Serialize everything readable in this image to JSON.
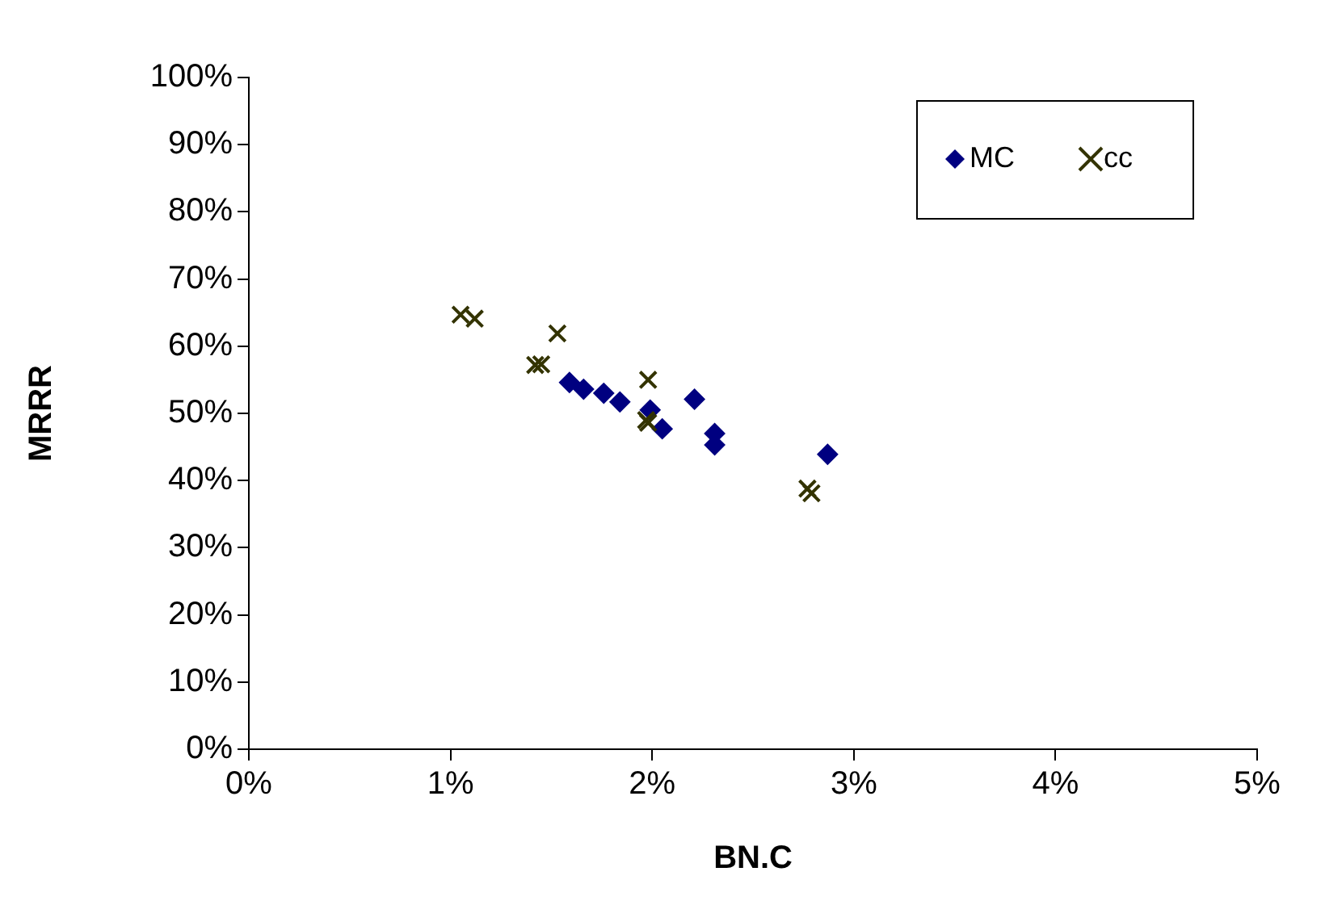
{
  "chart_data": {
    "type": "scatter",
    "xlabel": "BN.C",
    "ylabel": "MRRR",
    "xlim": [
      0,
      5
    ],
    "xticks": [
      {
        "value": 0,
        "label": "0%"
      },
      {
        "value": 1,
        "label": "1%"
      },
      {
        "value": 2,
        "label": "2%"
      },
      {
        "value": 3,
        "label": "3%"
      },
      {
        "value": 4,
        "label": "4%"
      },
      {
        "value": 5,
        "label": "5%"
      }
    ],
    "ylim": [
      0,
      100
    ],
    "yticks": [
      {
        "value": 0,
        "label": "0%"
      },
      {
        "value": 10,
        "label": "10%"
      },
      {
        "value": 20,
        "label": "20%"
      },
      {
        "value": 30,
        "label": "30%"
      },
      {
        "value": 40,
        "label": "40%"
      },
      {
        "value": 50,
        "label": "50%"
      },
      {
        "value": 60,
        "label": "60%"
      },
      {
        "value": 70,
        "label": "70%"
      },
      {
        "value": 80,
        "label": "80%"
      },
      {
        "value": 90,
        "label": "90%"
      },
      {
        "value": 100,
        "label": "100%"
      }
    ],
    "grid": false,
    "legend": "top right",
    "series": [
      {
        "name": "MC",
        "color": "#000080",
        "marker": "diamond",
        "x": [
          1.59,
          1.66,
          1.76,
          1.84,
          1.99,
          2.05,
          2.21,
          2.31,
          2.31,
          2.87
        ],
        "values": [
          54.6,
          53.6,
          53.0,
          51.7,
          50.5,
          47.7,
          52.1,
          47.0,
          45.3,
          43.9
        ]
      },
      {
        "name": "cc",
        "color": "#333300",
        "marker": "cross",
        "x": [
          1.05,
          1.12,
          1.53,
          1.42,
          1.45,
          1.98,
          1.97,
          1.98,
          2.77,
          2.79
        ],
        "values": [
          64.7,
          64.1,
          61.9,
          57.2,
          57.3,
          55.0,
          49.0,
          48.6,
          38.8,
          38.1
        ]
      }
    ]
  }
}
